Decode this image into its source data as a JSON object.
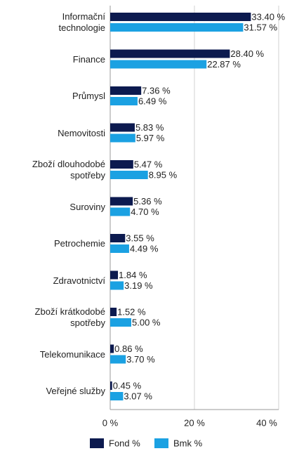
{
  "chart_data": {
    "type": "hbar",
    "categories": [
      "Informační technologie",
      "Finance",
      "Průmysl",
      "Nemovitosti",
      "Zboží dlouhodobé spotřeby",
      "Suroviny",
      "Petrochemie",
      "Zdravotnictví",
      "Zboží krátkodobé spotřeby",
      "Telekomunikace",
      "Veřejné služby"
    ],
    "series": [
      {
        "name": "Fond %",
        "color": "#0c1a4f",
        "values": [
          33.4,
          28.4,
          7.36,
          5.83,
          5.47,
          5.36,
          3.55,
          1.84,
          1.52,
          0.86,
          0.45
        ],
        "value_labels": [
          "33.40 %",
          "28.40 %",
          "7.36 %",
          "5.83 %",
          "5.47 %",
          "5.36 %",
          "3.55 %",
          "1.84 %",
          "1.52 %",
          "0.86 %",
          "0.45 %"
        ]
      },
      {
        "name": "Bmk %",
        "color": "#1ba1e2",
        "values": [
          31.57,
          22.87,
          6.49,
          5.97,
          8.95,
          4.7,
          4.49,
          3.19,
          5.0,
          3.7,
          3.07
        ],
        "value_labels": [
          "31.57 %",
          "22.87 %",
          "6.49 %",
          "5.97 %",
          "8.95 %",
          "4.70 %",
          "4.49 %",
          "3.19 %",
          "5.00 %",
          "3.70 %",
          "3.07 %"
        ]
      }
    ],
    "xlim": [
      0,
      40
    ],
    "xticks": [
      {
        "value": 0,
        "label": "0 %"
      },
      {
        "value": 20,
        "label": "20 %"
      },
      {
        "value": 40,
        "label": "40 %"
      }
    ],
    "grid": true,
    "legend": "bottom"
  }
}
